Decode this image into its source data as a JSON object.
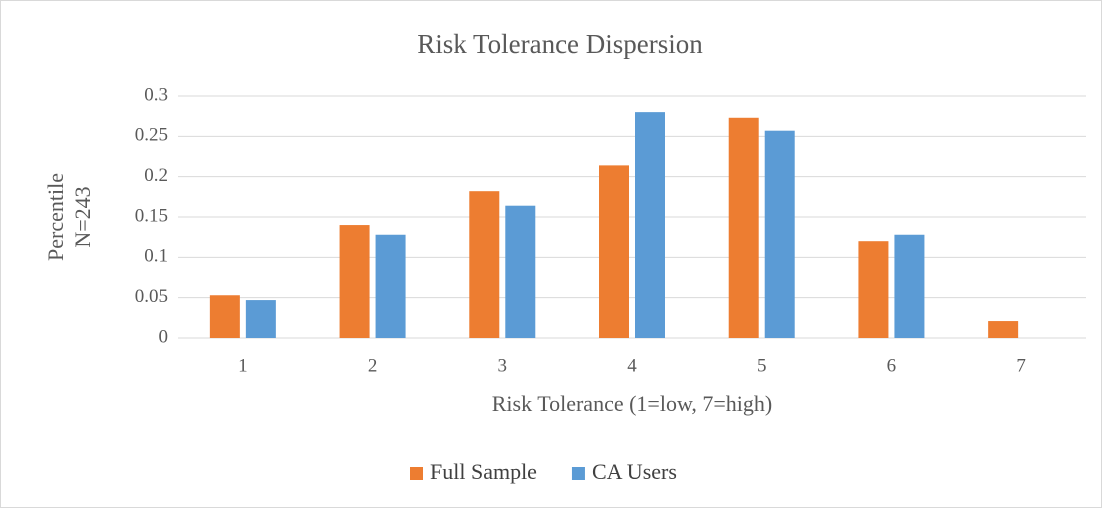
{
  "chart_data": {
    "type": "bar",
    "title": "Risk Tolerance Dispersion",
    "xlabel": "Risk Tolerance (1=low, 7=high)",
    "ylabel": [
      "Percentile",
      "N=243"
    ],
    "categories": [
      "1",
      "2",
      "3",
      "4",
      "5",
      "6",
      "7"
    ],
    "series": [
      {
        "name": "Full Sample",
        "color": "#ed7d31",
        "values": [
          0.053,
          0.14,
          0.182,
          0.214,
          0.273,
          0.12,
          0.021
        ]
      },
      {
        "name": "CA Users",
        "color": "#5b9bd5",
        "values": [
          0.047,
          0.128,
          0.164,
          0.28,
          0.257,
          0.128,
          0
        ]
      }
    ],
    "ylim": [
      0,
      0.3
    ],
    "yticks": [
      0,
      0.05,
      0.1,
      0.15,
      0.2,
      0.25,
      0.3
    ],
    "grid": true,
    "legend": "bottom"
  }
}
